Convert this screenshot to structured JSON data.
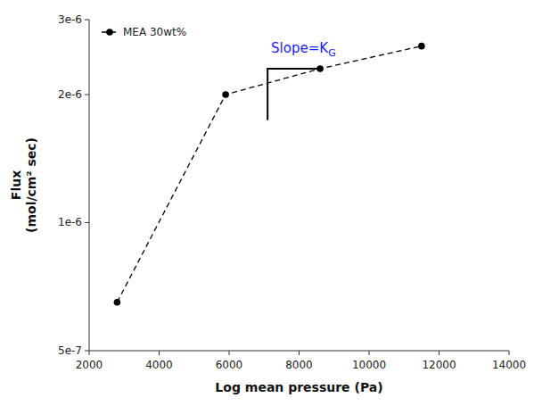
{
  "chart_data": {
    "type": "line",
    "xlabel": "Log mean pressure (Pa)",
    "ylabel": "Flux\n(mol/cm² sec)",
    "x": [
      2800,
      5900,
      8600,
      11500
    ],
    "series": [
      {
        "name": "MEA 30wt%",
        "color": "#000000",
        "values": [
          6.5e-07,
          2e-06,
          2.3e-06,
          2.6e-06
        ],
        "marker": "circle",
        "line_style": "dashed"
      }
    ],
    "xlim": [
      2000,
      14000
    ],
    "ylim": [
      5e-07,
      3e-06
    ],
    "xticks": [
      2000,
      4000,
      6000,
      8000,
      10000,
      12000,
      14000
    ],
    "yticks": [
      {
        "value": 5e-07,
        "label": "5e-7"
      },
      {
        "value": 1e-06,
        "label": "1e-6"
      },
      {
        "value": 2e-06,
        "label": "2e-6"
      },
      {
        "value": 3e-06,
        "label": "3e-6"
      }
    ],
    "log": "y",
    "grid": false,
    "legend": "upper left",
    "lines": [
      {
        "x": [
          7100,
          7100
        ],
        "y": [
          1.75e-06,
          2.3e-06
        ],
        "color": "#000000"
      },
      {
        "x": [
          7100,
          8600
        ],
        "y": [
          2.3e-06,
          2.3e-06
        ],
        "color": "#000000"
      }
    ],
    "annotations": [
      {
        "text": "Slope=K",
        "subscript": "G",
        "x": 7200,
        "y": 2.45e-06,
        "color": "#1c1cff"
      }
    ]
  }
}
